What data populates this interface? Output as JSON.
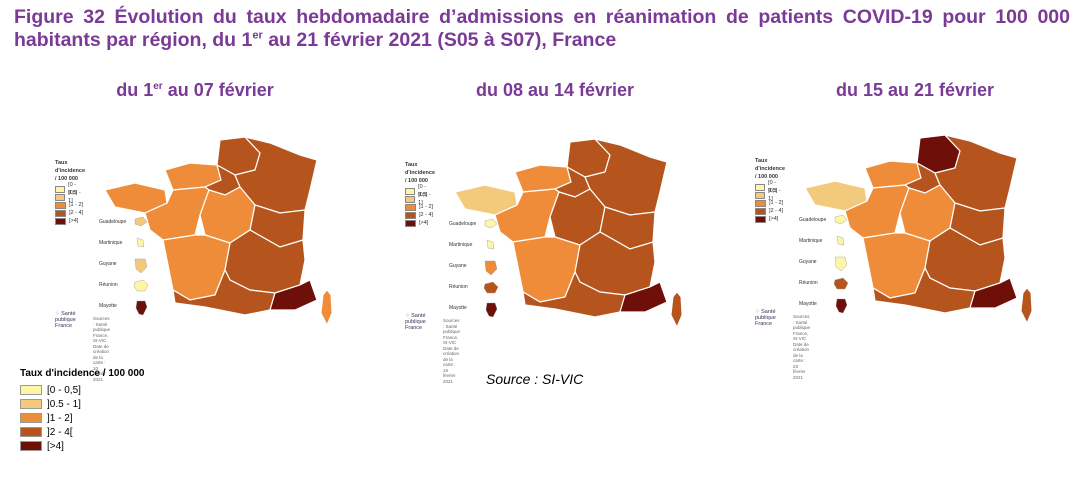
{
  "title": {
    "prefix": "Figure 32 Évolution du taux hebdomadaire d’admissions en réanimation de patients COVID-19 pour 100 000 habitants par région, du 1",
    "sup": "er",
    "suffix": " au 21 février 2021 (S05 à S07), France"
  },
  "colors": {
    "c0": "#fcf6a6",
    "c1": "#f3c97c",
    "c2": "#ee8c3a",
    "c3": "#b5551d",
    "c4": "#6e0f09"
  },
  "maps": [
    {
      "title_pre": "du 1",
      "title_sup": "er",
      "title_post": " au 07 février",
      "legend_title": "Taux d'incidence / 100 000",
      "legend_labels": [
        "[0 - 0,5]",
        "]0,5 - 1]",
        "]1 - 2]",
        "]2 - 4]",
        "[>4]"
      ],
      "regions": {
        "hdf": "c3",
        "ge": "c3",
        "idf": "c3",
        "norm": "c2",
        "bret": "c2",
        "pdl": "c2",
        "cvl": "c2",
        "bfc": "c3",
        "na": "c2",
        "ara": "c3",
        "occ": "c3",
        "paca": "c4",
        "cor": "c2"
      },
      "dom_labels": [
        "Guadeloupe",
        "Martinique",
        "Guyane",
        "Réunion",
        "Mayotte"
      ],
      "dom_colors": [
        "c1",
        "c0",
        "c1",
        "c0",
        "c4"
      ],
      "logo": "Santé publique France",
      "source_lines": [
        "Sources : Santé publique France, SI-VIC",
        "Date de création de la carte : 10 février 2021"
      ]
    },
    {
      "title_pre": "du 08 au 14 février",
      "title_sup": "",
      "title_post": "",
      "legend_title": "Taux d'incidence / 100 000",
      "legend_labels": [
        "[0 - 0,5]",
        "]0,5 - 1]",
        "]1 - 2]",
        "]2 - 4]",
        "[>4]"
      ],
      "regions": {
        "hdf": "c3",
        "ge": "c3",
        "idf": "c3",
        "norm": "c2",
        "bret": "c1",
        "pdl": "c2",
        "cvl": "c3",
        "bfc": "c3",
        "na": "c2",
        "ara": "c3",
        "occ": "c3",
        "paca": "c4",
        "cor": "c3"
      },
      "dom_labels": [
        "Guadeloupe",
        "Martinique",
        "Guyane",
        "Réunion",
        "Mayotte"
      ],
      "dom_colors": [
        "c0",
        "c0",
        "c2",
        "c3",
        "c4"
      ],
      "logo": "Santé publique France",
      "source_lines": [
        "Sources : Santé publique France, SI-VIC",
        "Date de création de la carte : 16 février 2021"
      ]
    },
    {
      "title_pre": "du 15 au 21 février",
      "title_sup": "",
      "title_post": "",
      "legend_title": "Taux d'incidence / 100 000",
      "legend_labels": [
        "[0 - 0,5]",
        "]0,5 - 1]",
        "]1 - 2]",
        "]2 - 4]",
        "[>4]"
      ],
      "regions": {
        "hdf": "c4",
        "ge": "c3",
        "idf": "c3",
        "norm": "c2",
        "bret": "c1",
        "pdl": "c2",
        "cvl": "c2",
        "bfc": "c3",
        "na": "c2",
        "ara": "c3",
        "occ": "c3",
        "paca": "c4",
        "cor": "c3"
      },
      "dom_labels": [
        "Guadeloupe",
        "Martinique",
        "Guyane",
        "Réunion",
        "Mayotte"
      ],
      "dom_colors": [
        "c0",
        "c0",
        "c0",
        "c3",
        "c4"
      ],
      "logo": "Santé publique France",
      "source_lines": [
        "Sources : Santé publique France, SI-VIC",
        "Date de création de la carte : 23 février 2021"
      ]
    }
  ],
  "legend": {
    "title": "Taux d'incidence / 100 000",
    "items": [
      {
        "label": "[0 - 0,5]",
        "color": "c0"
      },
      {
        "label": "]0.5 - 1]",
        "color": "c1"
      },
      {
        "label": "]1 - 2]",
        "color": "c2"
      },
      {
        "label": "]2 - 4[",
        "color": "c3"
      },
      {
        "label": "[>4]",
        "color": "c4"
      }
    ]
  },
  "source": "Source : SI-VIC"
}
